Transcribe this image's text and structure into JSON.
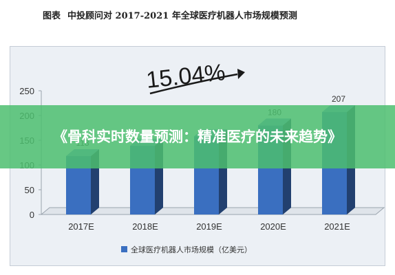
{
  "caption": {
    "fig_label": "图表",
    "title": "中投顾问对 2017-2021 年全球医疗机器人市场规模预测"
  },
  "banner": {
    "text": "《骨科实时数量预测：精准医疗的未来趋势》"
  },
  "chart_data": {
    "type": "bar",
    "categories": [
      "2017E",
      "2018E",
      "2019E",
      "2020E",
      "2021E"
    ],
    "series": [
      {
        "name": "全球医疗机器人市场规模（亿美元）",
        "values": [
          118,
          139,
          158,
          180,
          207
        ],
        "data_labels": [
          "118",
          "",
          "",
          "180",
          "207"
        ],
        "color": "#3a6fc0"
      }
    ],
    "y_ticks": [
      "0",
      "50",
      "100",
      "150",
      "200",
      "250"
    ],
    "ylim": [
      0,
      250
    ],
    "growth_annotation": "15.04%",
    "legend_position": "bottom",
    "grid": false
  },
  "colors": {
    "bar_front": "#3a6fc0",
    "bar_side": "#22406f",
    "bar_top": "#6f97d6",
    "panel_bg": "#ecf0f5",
    "banner_bg": "#4cbe6e"
  }
}
